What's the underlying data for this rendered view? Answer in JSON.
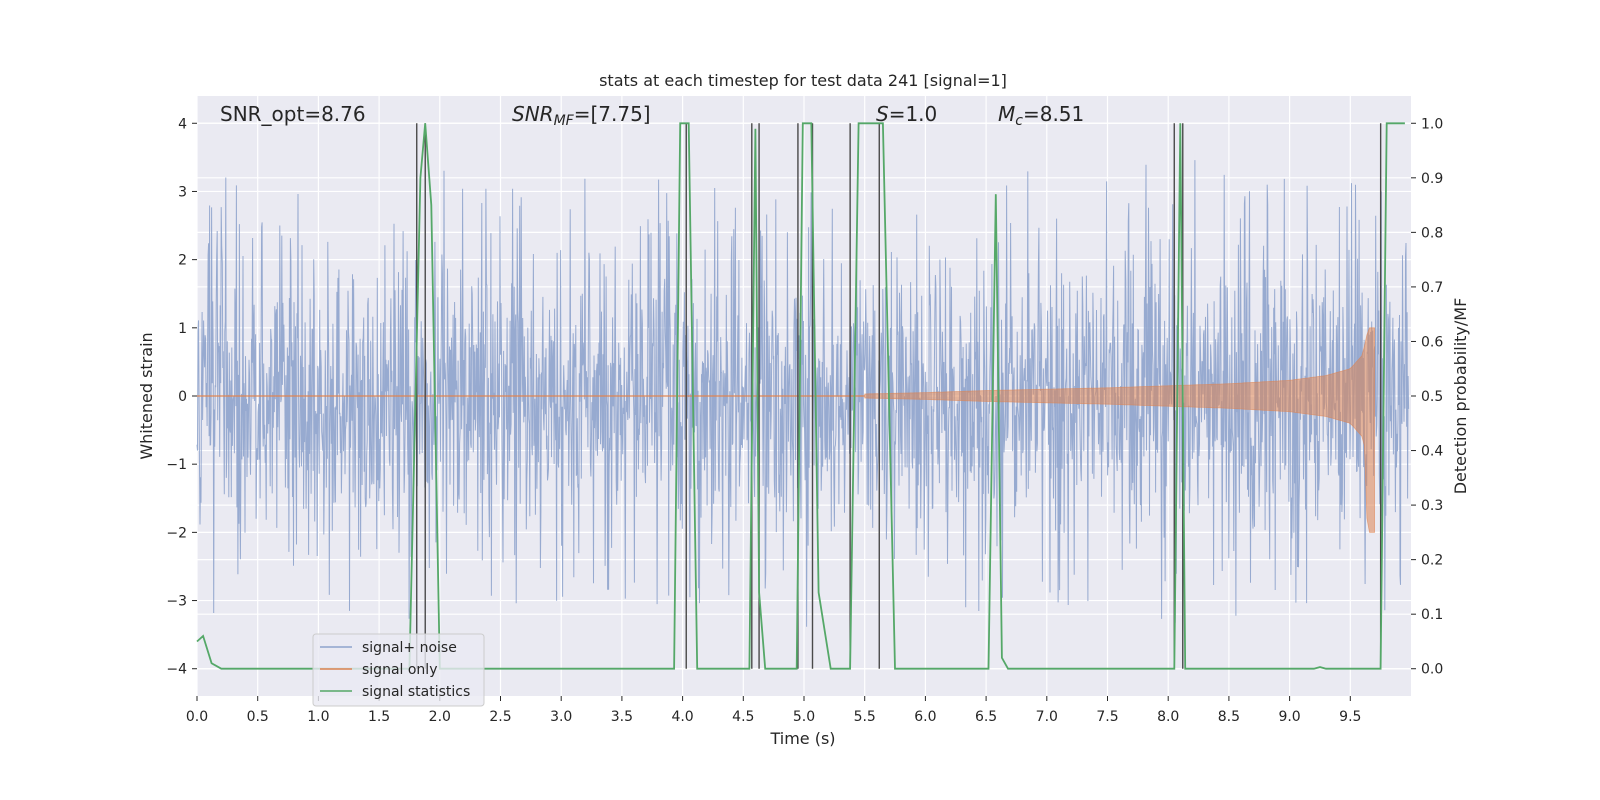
{
  "chart_data": {
    "type": "line",
    "title": "stats at each timestep for test data 241 [signal=1]",
    "xlabel": "Time (s)",
    "ylabel": "Whitened strain",
    "y2label": "Detection probability/MF",
    "xlim": [
      0.0,
      10.0
    ],
    "ylim": [
      -4.4,
      4.4
    ],
    "y2lim": [
      -0.05,
      1.05
    ],
    "x_ticks": [
      "0.0",
      "0.5",
      "1.0",
      "1.5",
      "2.0",
      "2.5",
      "3.0",
      "3.5",
      "4.0",
      "4.5",
      "5.0",
      "5.5",
      "6.0",
      "6.5",
      "7.0",
      "7.5",
      "8.0",
      "8.5",
      "9.0",
      "9.5"
    ],
    "y_ticks": [
      "4",
      "3",
      "2",
      "1",
      "0",
      "−1",
      "−2",
      "−3",
      "−4"
    ],
    "y2_ticks": [
      "1.0",
      "0.9",
      "0.8",
      "0.7",
      "0.6",
      "0.5",
      "0.4",
      "0.3",
      "0.2",
      "0.1",
      "0.0"
    ],
    "grid": true,
    "legend_position": "lower-left",
    "annotations": {
      "snr_opt": "SNR_opt=8.76",
      "snr_mf_sym": "SNR",
      "snr_mf_sub": "MF",
      "snr_mf_val": "=[7.75]",
      "s_sym": "S",
      "s_val": "=1.0",
      "mc_sym": "M",
      "mc_sub": "c",
      "mc_val": "=8.51"
    },
    "series": [
      {
        "name": "signal+ noise",
        "color": "#8ea3cc",
        "description_values": "noisy whitened strain oscillating roughly between -3.5 and 4 around 0",
        "envelope": {
          "x": [
            0.0,
            1.0,
            1.5,
            2.0,
            3.0,
            4.0,
            5.0,
            6.0,
            7.0,
            8.0,
            9.0,
            9.9
          ],
          "typical_amplitude": [
            1.6,
            1.6,
            1.6,
            1.6,
            1.6,
            1.6,
            1.6,
            1.6,
            1.6,
            1.6,
            1.6,
            1.6
          ],
          "peak_amplitude": [
            2.9,
            3.0,
            2.6,
            3.1,
            3.0,
            3.1,
            3.1,
            3.0,
            3.1,
            3.2,
            3.1,
            3.3
          ]
        }
      },
      {
        "name": "signal only",
        "color": "#dd8452",
        "chirp": {
          "x": [
            5.5,
            6.0,
            6.5,
            7.0,
            7.5,
            8.0,
            8.5,
            9.0,
            9.3,
            9.5,
            9.6,
            9.65,
            9.7
          ],
          "amplitude": [
            0.03,
            0.05,
            0.08,
            0.1,
            0.12,
            0.15,
            0.18,
            0.23,
            0.3,
            0.4,
            0.6,
            1.0,
            1.0
          ]
        }
      },
      {
        "name": "signal statistics",
        "color": "#55a868",
        "axis": "right",
        "x": [
          0.0,
          0.05,
          0.12,
          0.2,
          1.75,
          1.84,
          1.88,
          1.93,
          2.0,
          3.93,
          3.98,
          4.05,
          4.12,
          4.55,
          4.6,
          4.63,
          4.68,
          4.78,
          4.94,
          4.99,
          5.06,
          5.12,
          5.22,
          5.38,
          5.45,
          5.65,
          5.75,
          6.52,
          6.58,
          6.63,
          6.68,
          8.05,
          8.1,
          8.14,
          8.2,
          9.2,
          9.25,
          9.3,
          9.75,
          9.8,
          9.85,
          9.95
        ],
        "values": [
          0.05,
          0.06,
          0.01,
          0.0,
          0.0,
          0.9,
          1.0,
          0.85,
          0.0,
          0.0,
          1.0,
          1.0,
          0.0,
          0.0,
          0.99,
          0.14,
          0.0,
          0.0,
          0.0,
          1.0,
          1.0,
          0.14,
          0.0,
          0.0,
          1.0,
          1.0,
          0.0,
          0.0,
          0.87,
          0.02,
          0.0,
          0.0,
          1.0,
          0.0,
          0.0,
          0.0,
          0.003,
          0.0,
          0.0,
          1.0,
          1.0,
          1.0
        ]
      }
    ],
    "markers": {
      "color": "#4a4a4a",
      "x": [
        1.81,
        1.88,
        4.03,
        4.57,
        4.63,
        4.95,
        5.07,
        5.38,
        5.62,
        8.05,
        8.12,
        9.75
      ]
    }
  }
}
